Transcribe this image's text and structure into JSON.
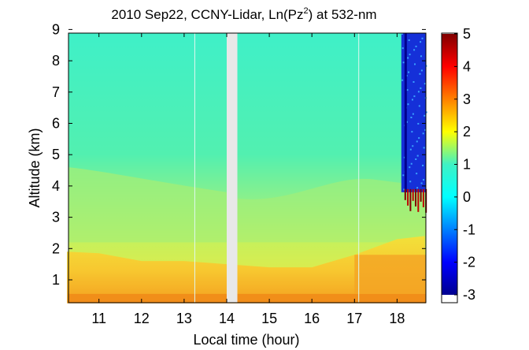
{
  "chart_data": {
    "type": "heatmap",
    "title_main": "2010 Sep22, CCNY-Lidar, Ln(Pz",
    "title_sup": "2",
    "title_tail": ") at 532-nm",
    "xlabel": "Local time (hour)",
    "ylabel": "Altitude (km)",
    "xlim": [
      10.25,
      18.65
    ],
    "ylim": [
      0.25,
      9.0
    ],
    "xticks": [
      "11",
      "12",
      "13",
      "14",
      "15",
      "16",
      "17",
      "18"
    ],
    "yticks": [
      "1",
      "2",
      "3",
      "4",
      "5",
      "6",
      "7",
      "8",
      "9"
    ],
    "colorbar": {
      "min": -3,
      "max": 5,
      "ticks": [
        "-3",
        "-2",
        "-1",
        "0",
        "1",
        "2",
        "3",
        "4",
        "5"
      ],
      "colormap": "jet"
    },
    "data_gap_hours": [
      14.0,
      14.25
    ],
    "boundary_layer_top_km": [
      [
        10.25,
        1.9
      ],
      [
        11.0,
        1.85
      ],
      [
        12.0,
        1.6
      ],
      [
        13.0,
        1.6
      ],
      [
        14.0,
        1.5
      ],
      [
        15.0,
        1.4
      ],
      [
        16.0,
        1.4
      ],
      [
        17.0,
        1.8
      ],
      [
        18.0,
        2.3
      ],
      [
        18.65,
        2.4
      ]
    ],
    "cloud_base_km": 3.8,
    "cloud_start_hour": 18.1,
    "colors": {
      "background_field": "#3ff2c4",
      "gap": "#e8e8e8"
    }
  }
}
